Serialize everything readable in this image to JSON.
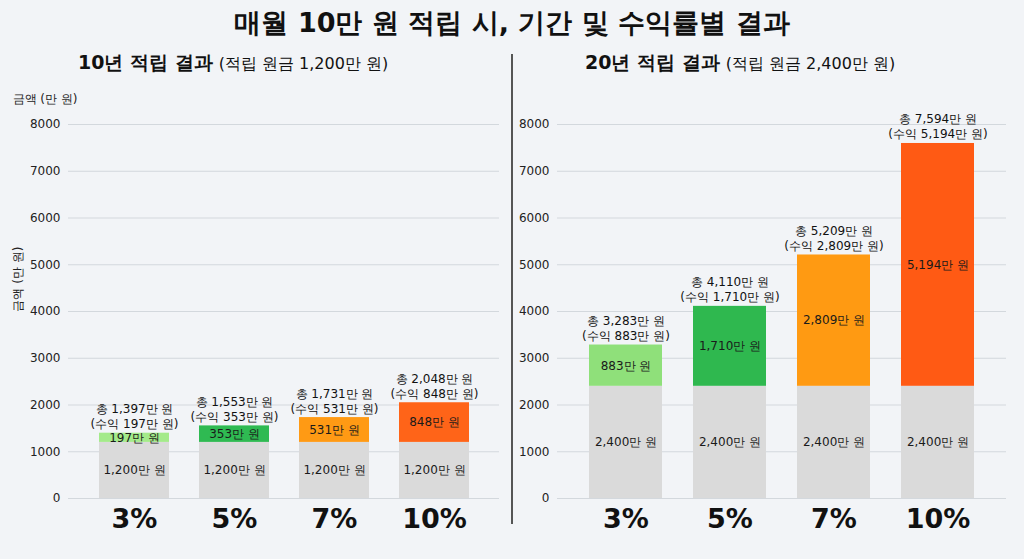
{
  "title": "매월 10만 원 적립 시, 기간 및 수익률별 결과",
  "chart_data": [
    {
      "type": "bar",
      "title": "10년 적립 결과",
      "subtitle": "(적립 원금 1,200만 원)",
      "ylabel": "금액 (만 원)",
      "ylabel_rotated": "금액 (만 원)",
      "categories": [
        "3%",
        "5%",
        "7%",
        "10%"
      ],
      "series": [
        {
          "color": "#dadada",
          "values": [
            1200,
            1200,
            1200,
            1200
          ],
          "value_labels": [
            "1,200만 원",
            "1,200만 원",
            "1,200만 원",
            "1,200만 원"
          ]
        },
        {
          "colors": [
            "#a4ea8a",
            "#2fba52",
            "#ff9a14",
            "#ff6418"
          ],
          "values": [
            197,
            353,
            531,
            848
          ],
          "value_labels": [
            "197만 원",
            "353만 원",
            "531만 원",
            "848만 원"
          ]
        }
      ],
      "annotations": [
        [
          "총 1,397만 원",
          "(수익 197만 원)"
        ],
        [
          "총 1,553만 원",
          "(수익 353만 원)"
        ],
        [
          "총 1,731만 원",
          "(수익 531만 원)"
        ],
        [
          "총 2,048만 원",
          "(수익 848만 원)"
        ]
      ],
      "ylim": [
        0,
        8000
      ],
      "yticks": [
        0,
        1000,
        2000,
        3000,
        4000,
        5000,
        6000,
        7000,
        8000
      ],
      "grid": true,
      "stacked": true,
      "data_labels": true
    },
    {
      "type": "bar",
      "title": "20년 적립 결과",
      "subtitle": "(적립 원금 2,400만 원)",
      "categories": [
        "3%",
        "5%",
        "7%",
        "10%"
      ],
      "series": [
        {
          "color": "#dadada",
          "values": [
            2400,
            2400,
            2400,
            2400
          ],
          "value_labels": [
            "2,400만 원",
            "2,400만 원",
            "2,400만 원",
            "2,400만 원"
          ]
        },
        {
          "colors": [
            "#8fe07a",
            "#2fb84f",
            "#ff9a12",
            "#ff5a14"
          ],
          "values": [
            883,
            1710,
            2809,
            5194
          ],
          "value_labels": [
            "883만 원",
            "1,710만 원",
            "2,809만 원",
            "5,194만 원"
          ]
        }
      ],
      "annotations": [
        [
          "총 3,283만 원",
          "(수익 883만 원)"
        ],
        [
          "총 4,110만 원",
          "(수익 1,710만 원)"
        ],
        [
          "총 5,209만 원",
          "(수익 2,809만 원)"
        ],
        [
          "총 7,594만 원",
          "(수익 5,194만 원)"
        ]
      ],
      "ylim": [
        0,
        8000
      ],
      "yticks": [
        0,
        1000,
        2000,
        3000,
        4000,
        5000,
        6000,
        7000,
        8000
      ],
      "grid": true,
      "stacked": true,
      "data_labels": true
    }
  ]
}
